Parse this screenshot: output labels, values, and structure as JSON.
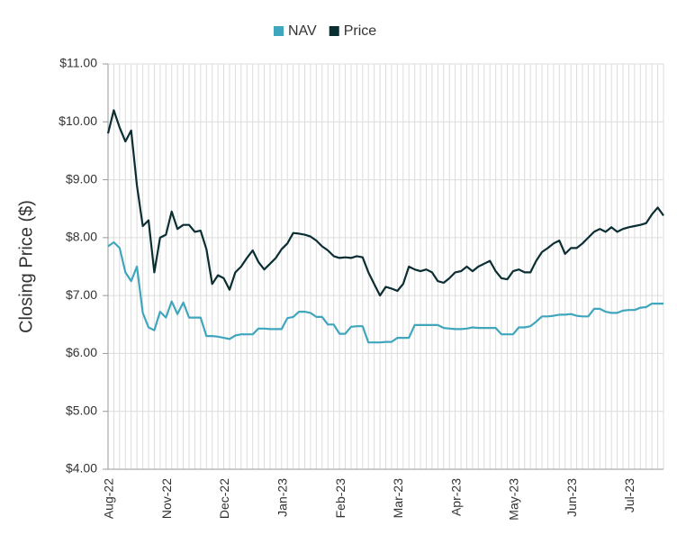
{
  "chart_data": {
    "type": "line",
    "ylabel": "Closing Price ($)",
    "categories": [
      "Aug-22",
      null,
      null,
      null,
      null,
      null,
      null,
      null,
      null,
      null,
      "Nov-22",
      null,
      null,
      null,
      null,
      null,
      null,
      null,
      null,
      null,
      "Dec-22",
      null,
      null,
      null,
      null,
      null,
      null,
      null,
      null,
      null,
      "Jan-23",
      null,
      null,
      null,
      null,
      null,
      null,
      null,
      null,
      null,
      "Feb-23",
      null,
      null,
      null,
      null,
      null,
      null,
      null,
      null,
      null,
      "Mar-23",
      null,
      null,
      null,
      null,
      null,
      null,
      null,
      null,
      null,
      "Apr-23",
      null,
      null,
      null,
      null,
      null,
      null,
      null,
      null,
      null,
      "May-23",
      null,
      null,
      null,
      null,
      null,
      null,
      null,
      null,
      null,
      "Jun-23",
      null,
      null,
      null,
      null,
      null,
      null,
      null,
      null,
      null,
      "Jul-23",
      null,
      null,
      null,
      null,
      null,
      null
    ],
    "series": [
      {
        "name": "NAV",
        "color": "#3fa6bd",
        "values": [
          7.85,
          7.92,
          7.82,
          7.4,
          7.25,
          7.5,
          6.7,
          6.45,
          6.4,
          6.72,
          6.62,
          6.9,
          6.68,
          6.88,
          6.62,
          6.62,
          6.62,
          6.3,
          6.3,
          6.29,
          6.27,
          6.25,
          6.31,
          6.33,
          6.33,
          6.33,
          6.43,
          6.43,
          6.42,
          6.42,
          6.42,
          6.61,
          6.63,
          6.72,
          6.72,
          6.7,
          6.63,
          6.63,
          6.5,
          6.5,
          6.34,
          6.34,
          6.46,
          6.47,
          6.47,
          6.19,
          6.19,
          6.19,
          6.2,
          6.2,
          6.27,
          6.27,
          6.27,
          6.49,
          6.49,
          6.49,
          6.49,
          6.49,
          6.44,
          6.43,
          6.42,
          6.42,
          6.43,
          6.45,
          6.44,
          6.44,
          6.44,
          6.44,
          6.33,
          6.33,
          6.33,
          6.45,
          6.45,
          6.47,
          6.55,
          6.64,
          6.64,
          6.65,
          6.67,
          6.67,
          6.68,
          6.65,
          6.64,
          6.64,
          6.77,
          6.77,
          6.72,
          6.7,
          6.7,
          6.74,
          6.75,
          6.75,
          6.79,
          6.8,
          6.86,
          6.86,
          6.86
        ]
      },
      {
        "name": "Price",
        "color": "#0b2e33",
        "values": [
          9.8,
          10.2,
          9.9,
          9.66,
          9.85,
          8.9,
          8.2,
          8.3,
          7.4,
          8.0,
          8.05,
          8.45,
          8.15,
          8.22,
          8.22,
          8.1,
          8.12,
          7.8,
          7.2,
          7.35,
          7.3,
          7.1,
          7.4,
          7.5,
          7.65,
          7.78,
          7.58,
          7.45,
          7.55,
          7.65,
          7.8,
          7.9,
          8.08,
          8.07,
          8.05,
          8.02,
          7.95,
          7.85,
          7.78,
          7.68,
          7.65,
          7.66,
          7.65,
          7.68,
          7.66,
          7.4,
          7.2,
          7.0,
          7.15,
          7.12,
          7.08,
          7.2,
          7.5,
          7.45,
          7.42,
          7.45,
          7.4,
          7.25,
          7.22,
          7.3,
          7.4,
          7.42,
          7.5,
          7.42,
          7.5,
          7.55,
          7.6,
          7.42,
          7.3,
          7.28,
          7.42,
          7.45,
          7.4,
          7.4,
          7.6,
          7.75,
          7.82,
          7.9,
          7.95,
          7.72,
          7.82,
          7.82,
          7.9,
          8.0,
          8.1,
          8.15,
          8.1,
          8.18,
          8.1,
          8.15,
          8.18,
          8.2,
          8.22,
          8.25,
          8.4,
          8.52,
          8.38
        ]
      }
    ],
    "ylim": [
      4,
      11
    ],
    "yticks": [
      {
        "value": 4,
        "label": "$4.00"
      },
      {
        "value": 5,
        "label": "$5.00"
      },
      {
        "value": 6,
        "label": "$6.00"
      },
      {
        "value": 7,
        "label": "$7.00"
      },
      {
        "value": 8,
        "label": "$8.00"
      },
      {
        "value": 9,
        "label": "$9.00"
      },
      {
        "value": 10,
        "label": "$10.00"
      },
      {
        "value": 11,
        "label": "$11.00"
      }
    ],
    "grid": true,
    "legend": "top"
  }
}
